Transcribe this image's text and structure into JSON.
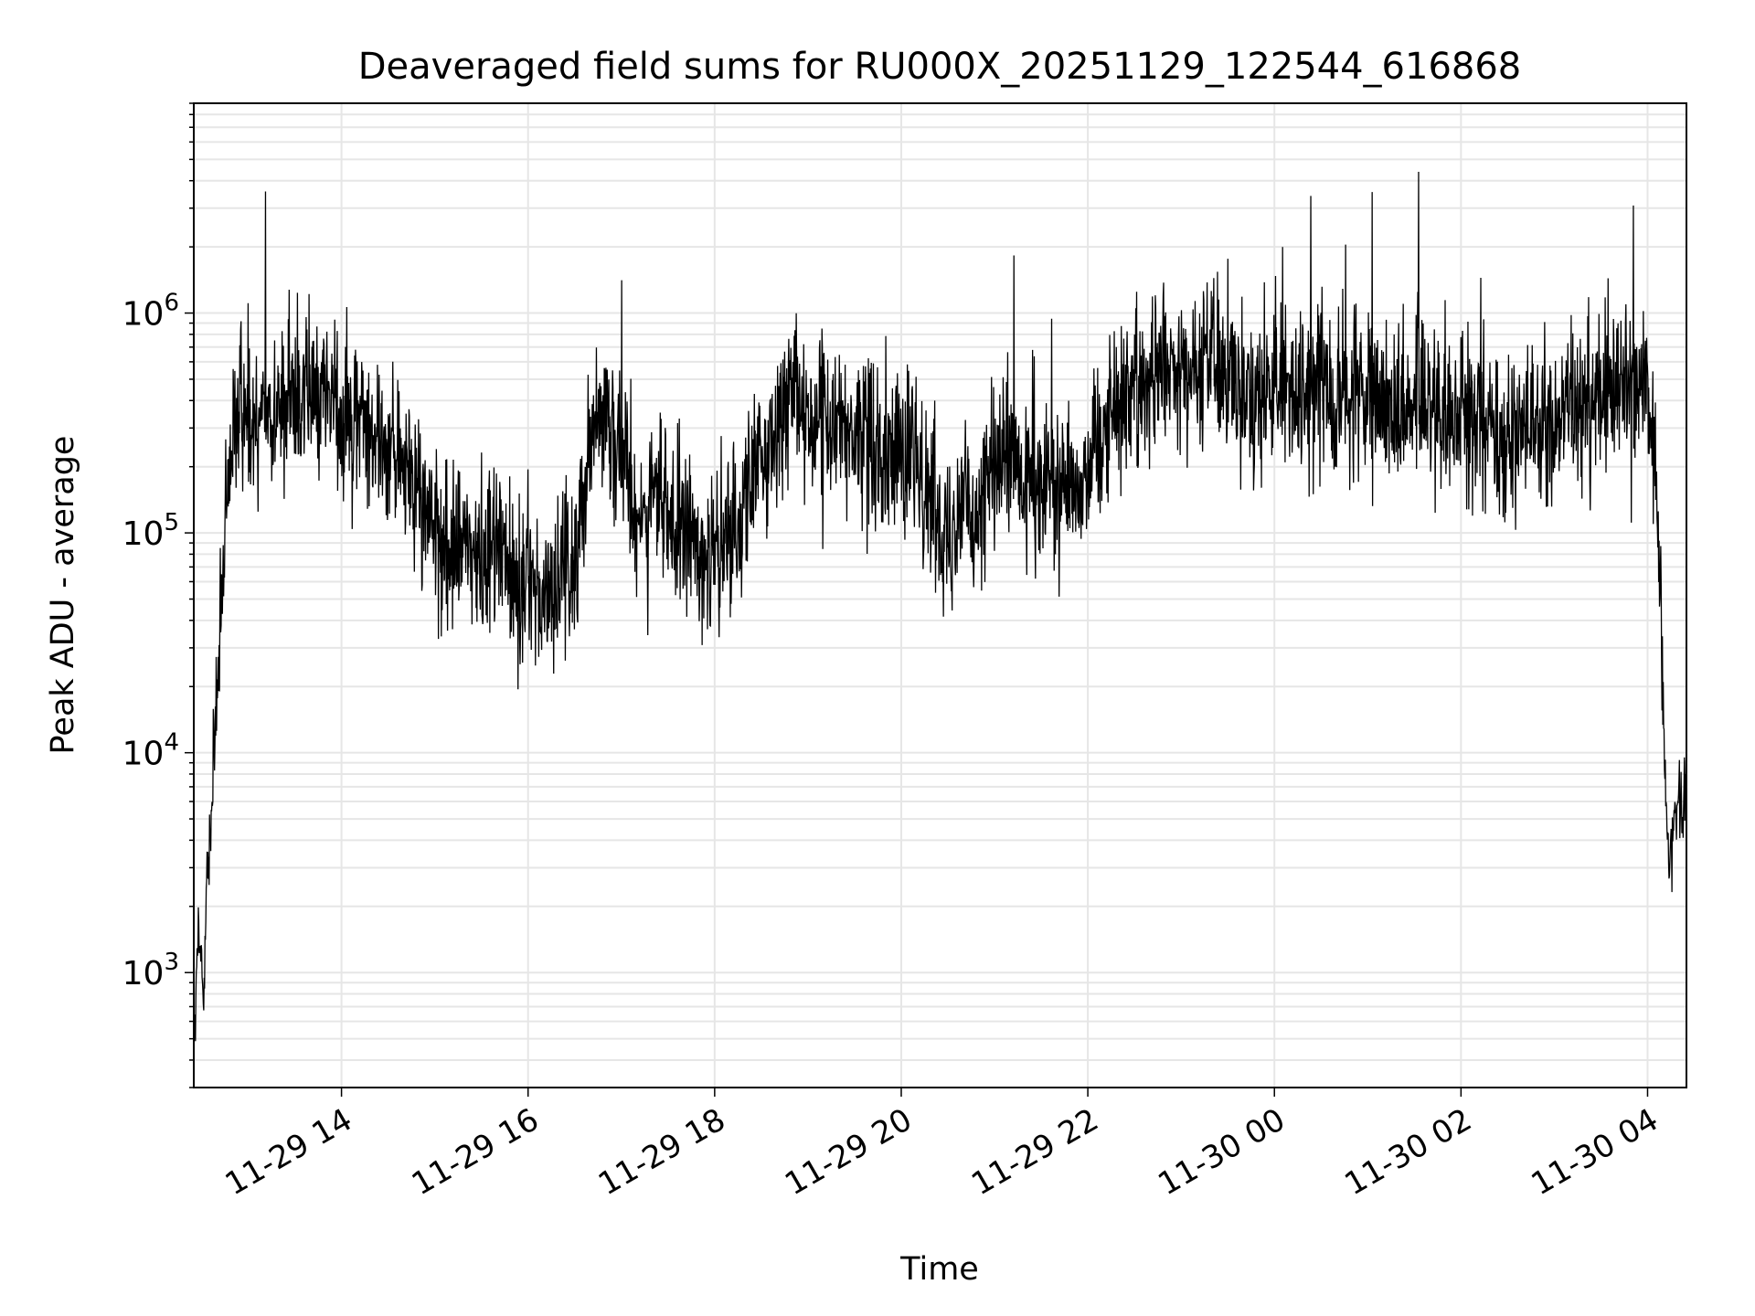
{
  "chart_data": {
    "type": "line",
    "title": "Deaveraged field sums for RU000X_20251129_122544_616868",
    "xlabel": "Time",
    "ylabel": "Peak ADU - average",
    "yscale": "log",
    "xlim": [
      "2025-11-29 12:25",
      "2025-11-30 04:25"
    ],
    "ylim": [
      300,
      9000000
    ],
    "grid": true,
    "x_ticks": [
      {
        "value": "2025-11-29 14:00",
        "label": "11-29 14"
      },
      {
        "value": "2025-11-29 16:00",
        "label": "11-29 16"
      },
      {
        "value": "2025-11-29 18:00",
        "label": "11-29 18"
      },
      {
        "value": "2025-11-29 20:00",
        "label": "11-29 20"
      },
      {
        "value": "2025-11-29 22:00",
        "label": "11-29 22"
      },
      {
        "value": "2025-11-30 00:00",
        "label": "11-30 00"
      },
      {
        "value": "2025-11-30 02:00",
        "label": "11-30 02"
      },
      {
        "value": "2025-11-30 04:00",
        "label": "11-30 04"
      }
    ],
    "y_ticks": [
      {
        "value": 1000,
        "base": "10",
        "exp": "3"
      },
      {
        "value": 10000,
        "base": "10",
        "exp": "4"
      },
      {
        "value": 100000,
        "base": "10",
        "exp": "5"
      },
      {
        "value": 1000000,
        "base": "10",
        "exp": "6"
      }
    ],
    "line_color": "#000000",
    "grid_color": "#e6e6e6",
    "series": [
      {
        "x": [
          "2025-11-29 12:25",
          "2025-11-29 12:28",
          "2025-11-29 12:31",
          "2025-11-29 12:34",
          "2025-11-29 12:37",
          "2025-11-29 12:40",
          "2025-11-29 12:43",
          "2025-11-29 12:46",
          "2025-11-29 12:50",
          "2025-11-29 12:55",
          "2025-11-29 13:00",
          "2025-11-29 13:10",
          "2025-11-29 13:20",
          "2025-11-29 13:30",
          "2025-11-29 13:40",
          "2025-11-29 13:50",
          "2025-11-29 14:00",
          "2025-11-29 14:10",
          "2025-11-29 14:20",
          "2025-11-29 14:30",
          "2025-11-29 14:40",
          "2025-11-29 14:50",
          "2025-11-29 15:00",
          "2025-11-29 15:10",
          "2025-11-29 15:20",
          "2025-11-29 15:30",
          "2025-11-29 15:40",
          "2025-11-29 15:50",
          "2025-11-29 16:00",
          "2025-11-29 16:10",
          "2025-11-29 16:20",
          "2025-11-29 16:30",
          "2025-11-29 16:40",
          "2025-11-29 16:50",
          "2025-11-29 17:00",
          "2025-11-29 17:10",
          "2025-11-29 17:20",
          "2025-11-29 17:30",
          "2025-11-29 17:40",
          "2025-11-29 17:50",
          "2025-11-29 18:00",
          "2025-11-29 18:10",
          "2025-11-29 18:20",
          "2025-11-29 18:30",
          "2025-11-29 18:40",
          "2025-11-29 18:50",
          "2025-11-29 19:00",
          "2025-11-29 19:10",
          "2025-11-29 19:20",
          "2025-11-29 19:30",
          "2025-11-29 19:40",
          "2025-11-29 19:50",
          "2025-11-29 20:00",
          "2025-11-29 20:10",
          "2025-11-29 20:20",
          "2025-11-29 20:30",
          "2025-11-29 20:40",
          "2025-11-29 20:50",
          "2025-11-29 21:00",
          "2025-11-29 21:10",
          "2025-11-29 21:20",
          "2025-11-29 21:30",
          "2025-11-29 21:40",
          "2025-11-29 21:50",
          "2025-11-29 22:00",
          "2025-11-29 22:10",
          "2025-11-29 22:20",
          "2025-11-29 22:30",
          "2025-11-29 22:40",
          "2025-11-29 22:50",
          "2025-11-29 23:00",
          "2025-11-29 23:10",
          "2025-11-29 23:20",
          "2025-11-29 23:30",
          "2025-11-29 23:40",
          "2025-11-29 23:50",
          "2025-11-30 00:00",
          "2025-11-30 00:10",
          "2025-11-30 00:20",
          "2025-11-30 00:30",
          "2025-11-30 00:40",
          "2025-11-30 00:50",
          "2025-11-30 01:00",
          "2025-11-30 01:10",
          "2025-11-30 01:20",
          "2025-11-30 01:30",
          "2025-11-30 01:40",
          "2025-11-30 01:50",
          "2025-11-30 02:00",
          "2025-11-30 02:10",
          "2025-11-30 02:20",
          "2025-11-30 02:30",
          "2025-11-30 02:40",
          "2025-11-30 02:50",
          "2025-11-30 03:00",
          "2025-11-30 03:10",
          "2025-11-30 03:20",
          "2025-11-30 03:30",
          "2025-11-30 03:40",
          "2025-11-30 03:50",
          "2025-11-30 04:00",
          "2025-11-30 04:05",
          "2025-11-30 04:08",
          "2025-11-30 04:11",
          "2025-11-30 04:14",
          "2025-11-30 04:17",
          "2025-11-30 04:20",
          "2025-11-30 04:25"
        ],
        "y": [
          400,
          1500,
          900,
          3000,
          6000,
          20000,
          50000,
          100000,
          250000,
          400000,
          350000,
          400000,
          350000,
          450000,
          400000,
          450000,
          350000,
          350000,
          300000,
          250000,
          200000,
          150000,
          100000,
          80000,
          90000,
          70000,
          100000,
          60000,
          60000,
          50000,
          60000,
          70000,
          300000,
          400000,
          250000,
          100000,
          150000,
          120000,
          100000,
          90000,
          70000,
          100000,
          150000,
          200000,
          300000,
          400000,
          350000,
          300000,
          300000,
          250000,
          300000,
          250000,
          220000,
          200000,
          150000,
          100000,
          150000,
          120000,
          200000,
          220000,
          150000,
          150000,
          180000,
          160000,
          200000,
          300000,
          400000,
          500000,
          500000,
          550000,
          500000,
          600000,
          600000,
          500000,
          500000,
          400000,
          450000,
          450000,
          400000,
          500000,
          400000,
          450000,
          350000,
          400000,
          350000,
          450000,
          400000,
          350000,
          350000,
          350000,
          300000,
          250000,
          300000,
          300000,
          300000,
          350000,
          400000,
          450000,
          500000,
          450000,
          500000,
          200000,
          50000,
          10000,
          3000,
          5000,
          6000,
          6000
        ]
      }
    ]
  }
}
